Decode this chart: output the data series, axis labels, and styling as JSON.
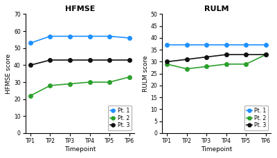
{
  "timepoints": [
    "TP1",
    "TP2",
    "TP3",
    "TP4",
    "TP5",
    "TP6"
  ],
  "hfmse": {
    "pt1": [
      53,
      57,
      57,
      57,
      57,
      56
    ],
    "pt2": [
      22,
      28,
      29,
      30,
      30,
      33
    ],
    "pt3": [
      40,
      43,
      43,
      43,
      43,
      43
    ]
  },
  "rulm": {
    "pt1": [
      37,
      37,
      37,
      37,
      37,
      37
    ],
    "pt2": [
      29,
      27,
      28,
      29,
      29,
      33
    ],
    "pt3": [
      30,
      31,
      32,
      33,
      33,
      33
    ]
  },
  "colors": {
    "pt1": "#1e90ff",
    "pt2": "#2ca02c",
    "pt3": "#111111"
  },
  "hfmse_title": "HFMSE",
  "rulm_title": "RULM",
  "hfmse_ylabel": "HFMSE score",
  "rulm_ylabel": "RULM score",
  "xlabel": "Timepoint",
  "hfmse_ylim": [
    0,
    70
  ],
  "rulm_ylim": [
    0,
    50
  ],
  "hfmse_yticks": [
    0,
    10,
    20,
    30,
    40,
    50,
    60,
    70
  ],
  "rulm_yticks": [
    0,
    5,
    10,
    15,
    20,
    25,
    30,
    35,
    40,
    45,
    50
  ],
  "legend_labels": [
    "Pt. 1",
    "Pt. 2",
    "Pt. 3"
  ],
  "marker": "o",
  "markersize": 4,
  "linewidth": 1.2,
  "background_color": "#ffffff"
}
